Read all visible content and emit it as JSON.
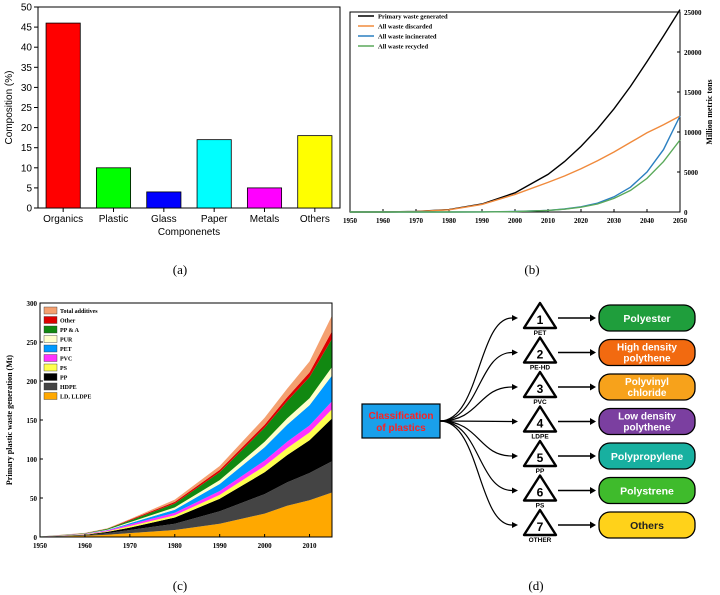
{
  "chart_data": [
    {
      "panel": "(a)",
      "type": "bar",
      "xlabel": "Componenets",
      "ylabel": "Composition (%)",
      "ylim": [
        0,
        50
      ],
      "yticks": [
        0,
        5,
        10,
        15,
        20,
        25,
        30,
        35,
        40,
        45,
        50
      ],
      "categories": [
        "Organics",
        "Plastic",
        "Glass",
        "Paper",
        "Metals",
        "Others"
      ],
      "values": [
        46,
        10,
        4,
        17,
        5,
        18
      ],
      "colors": [
        "#ff0000",
        "#00ff00",
        "#0000ff",
        "#00ffff",
        "#ff00ff",
        "#ffff00"
      ]
    },
    {
      "panel": "(b)",
      "type": "line",
      "ylabel": "Million metric tons",
      "xlim": [
        1950,
        2050
      ],
      "ylim": [
        0,
        25000
      ],
      "xticks": [
        1950,
        1960,
        1970,
        1980,
        1990,
        2000,
        2010,
        2020,
        2030,
        2040,
        2050
      ],
      "yticks": [
        0,
        5000,
        10000,
        15000,
        20000,
        25000
      ],
      "legend_position": "top-left",
      "x": [
        1950,
        1960,
        1970,
        1980,
        1990,
        2000,
        2010,
        2015,
        2020,
        2025,
        2030,
        2035,
        2040,
        2045,
        2050
      ],
      "series": [
        {
          "name": "Primary waste generated",
          "color": "#000000",
          "values": [
            0,
            5,
            60,
            300,
            1000,
            2400,
            4700,
            6300,
            8200,
            10400,
            12900,
            15700,
            18800,
            22000,
            25300
          ]
        },
        {
          "name": "All waste discarded",
          "color": "#f08a3c",
          "values": [
            0,
            5,
            55,
            280,
            950,
            2200,
            3700,
            4500,
            5400,
            6400,
            7500,
            8700,
            9900,
            10900,
            12000
          ]
        },
        {
          "name": "All waste incinerated",
          "color": "#2b7fc1",
          "values": [
            0,
            0,
            0,
            0,
            10,
            60,
            200,
            380,
            650,
            1100,
            1900,
            3100,
            5000,
            7800,
            12000
          ]
        },
        {
          "name": "All waste recycled",
          "color": "#5aa95a",
          "values": [
            0,
            0,
            0,
            0,
            10,
            50,
            200,
            350,
            600,
            1000,
            1700,
            2700,
            4200,
            6300,
            9000
          ]
        }
      ]
    },
    {
      "panel": "(c)",
      "type": "area",
      "ylabel": "Primary plastic waste generation (Mt)",
      "xlim": [
        1950,
        2015
      ],
      "ylim": [
        0,
        300
      ],
      "xticks": [
        1950,
        1960,
        1970,
        1980,
        1990,
        2000,
        2010
      ],
      "yticks": [
        0,
        50,
        100,
        150,
        200,
        250,
        300
      ],
      "legend_position": "top-left",
      "x": [
        1950,
        1960,
        1965,
        1970,
        1980,
        1990,
        2000,
        2005,
        2010,
        2015
      ],
      "series": [
        {
          "name": "LD, LLDPE",
          "color": "#ffa800",
          "values": [
            0.2,
            1.5,
            3,
            5,
            9,
            17,
            30,
            40,
            47,
            57
          ]
        },
        {
          "name": "HDPE",
          "color": "#444444",
          "values": [
            0.1,
            1,
            2,
            4,
            8,
            16,
            25,
            30,
            35,
            40
          ]
        },
        {
          "name": "PP",
          "color": "#000000",
          "values": [
            0,
            0.5,
            1.5,
            3,
            8,
            16,
            28,
            35,
            42,
            55
          ]
        },
        {
          "name": "PS",
          "color": "#ffff4d",
          "values": [
            0.1,
            0.5,
            1,
            2,
            3,
            5,
            8,
            9,
            10,
            12
          ]
        },
        {
          "name": "PVC",
          "color": "#ff33ff",
          "values": [
            0.1,
            0.5,
            1,
            2,
            3,
            5,
            7,
            8,
            9,
            10
          ]
        },
        {
          "name": "PET",
          "color": "#0099ff",
          "values": [
            0,
            0.2,
            0.5,
            1.5,
            4,
            9,
            17,
            22,
            26,
            33
          ]
        },
        {
          "name": "PUR",
          "color": "#ffffcc",
          "values": [
            0,
            0.2,
            0.5,
            1.5,
            3,
            5,
            7,
            8,
            9,
            11
          ]
        },
        {
          "name": "PP & A",
          "color": "#118811",
          "values": [
            0.1,
            0.5,
            1,
            2,
            5,
            10,
            18,
            22,
            27,
            36
          ]
        },
        {
          "name": "Other",
          "color": "#dd0000",
          "values": [
            0,
            0.1,
            0.3,
            1,
            2,
            3,
            4,
            5,
            6,
            10
          ]
        },
        {
          "name": "Total additives",
          "color": "#f4a070",
          "values": [
            0,
            0.2,
            0.5,
            1,
            3,
            5,
            9,
            11,
            14,
            20
          ]
        }
      ]
    }
  ],
  "diagram": {
    "panel": "(d)",
    "root": {
      "label": "Classification of plastics",
      "bg": "#1aa0ea",
      "color": "#ff2020"
    },
    "items": [
      {
        "num": "1",
        "code": "PET",
        "name": "Polyester",
        "color": "#1f9e3c",
        "text_color": "#ffffff"
      },
      {
        "num": "2",
        "code": "PE-HD",
        "name": "High density polythene",
        "color": "#f26a10",
        "text_color": "#ffffff"
      },
      {
        "num": "3",
        "code": "PVC",
        "name": "Polyvinyl chloride",
        "color": "#f7a21b",
        "text_color": "#ffffff"
      },
      {
        "num": "4",
        "code": "LDPE",
        "name": "Low density polythene",
        "color": "#7b3fa0",
        "text_color": "#ffffff"
      },
      {
        "num": "5",
        "code": "PP",
        "name": "Polypropylene",
        "color": "#18b0a0",
        "text_color": "#ffffff"
      },
      {
        "num": "6",
        "code": "PS",
        "name": "Polystrene",
        "color": "#3fbb2c",
        "text_color": "#ffffff"
      },
      {
        "num": "7",
        "code": "OTHER",
        "name": "Others",
        "color": "#ffd21a",
        "text_color": "#222222"
      }
    ]
  },
  "captions": {
    "a": "(a)",
    "b": "(b)",
    "c": "(c)",
    "d": "(d)"
  }
}
